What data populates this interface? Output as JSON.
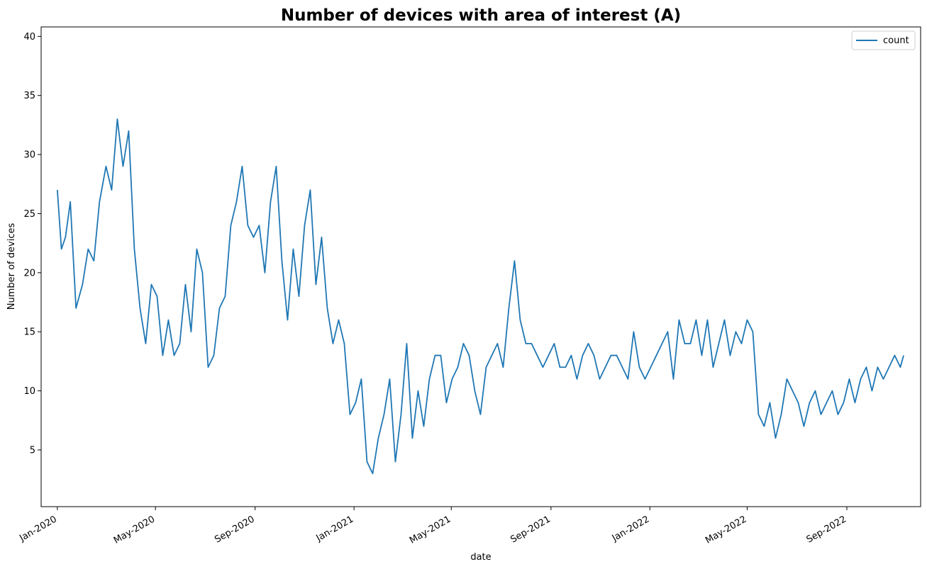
{
  "chart_data": {
    "type": "line",
    "title": "Number of devices with area of interest (A)",
    "xlabel": "date",
    "ylabel": "Number of devices",
    "x_start": "2020-01-01",
    "x_end": "2022-11-10",
    "xlim": [
      "2019-12-12",
      "2022-12-01"
    ],
    "ylim": [
      0.2,
      40.8
    ],
    "x_ticks": [
      {
        "date": "2020-01-01",
        "label": "Jan-2020"
      },
      {
        "date": "2020-05-01",
        "label": "May-2020"
      },
      {
        "date": "2020-09-01",
        "label": "Sep-2020"
      },
      {
        "date": "2021-01-01",
        "label": "Jan-2021"
      },
      {
        "date": "2021-05-01",
        "label": "May-2021"
      },
      {
        "date": "2021-09-01",
        "label": "Sep-2021"
      },
      {
        "date": "2022-01-01",
        "label": "Jan-2022"
      },
      {
        "date": "2022-05-01",
        "label": "May-2022"
      },
      {
        "date": "2022-09-01",
        "label": "Sep-2022"
      }
    ],
    "y_ticks": [
      5,
      10,
      15,
      20,
      25,
      30,
      35,
      40
    ],
    "grid": false,
    "legend_position": "top-right",
    "series": [
      {
        "name": "count",
        "color": "#1f77b4",
        "x": [
          "2020-01-01",
          "2020-01-06",
          "2020-01-11",
          "2020-01-17",
          "2020-01-24",
          "2020-02-01",
          "2020-02-08",
          "2020-02-15",
          "2020-02-22",
          "2020-03-01",
          "2020-03-08",
          "2020-03-15",
          "2020-03-22",
          "2020-03-29",
          "2020-04-05",
          "2020-04-12",
          "2020-04-19",
          "2020-04-26",
          "2020-05-03",
          "2020-05-10",
          "2020-05-17",
          "2020-05-24",
          "2020-05-31",
          "2020-06-07",
          "2020-06-14",
          "2020-06-21",
          "2020-06-28",
          "2020-07-05",
          "2020-07-12",
          "2020-07-19",
          "2020-07-26",
          "2020-08-02",
          "2020-08-09",
          "2020-08-16",
          "2020-08-23",
          "2020-08-30",
          "2020-09-06",
          "2020-09-13",
          "2020-09-20",
          "2020-09-27",
          "2020-10-04",
          "2020-10-11",
          "2020-10-18",
          "2020-10-25",
          "2020-11-01",
          "2020-11-08",
          "2020-11-15",
          "2020-11-22",
          "2020-11-29",
          "2020-12-06",
          "2020-12-13",
          "2020-12-20",
          "2020-12-27",
          "2021-01-03",
          "2021-01-10",
          "2021-01-17",
          "2021-01-24",
          "2021-01-31",
          "2021-02-07",
          "2021-02-14",
          "2021-02-21",
          "2021-02-28",
          "2021-03-07",
          "2021-03-14",
          "2021-03-21",
          "2021-03-28",
          "2021-04-04",
          "2021-04-11",
          "2021-04-18",
          "2021-04-25",
          "2021-05-02",
          "2021-05-09",
          "2021-05-16",
          "2021-05-23",
          "2021-05-30",
          "2021-06-06",
          "2021-06-13",
          "2021-06-20",
          "2021-06-27",
          "2021-07-04",
          "2021-07-11",
          "2021-07-18",
          "2021-07-25",
          "2021-08-01",
          "2021-08-08",
          "2021-08-15",
          "2021-08-22",
          "2021-08-29",
          "2021-09-05",
          "2021-09-12",
          "2021-09-19",
          "2021-09-26",
          "2021-10-03",
          "2021-10-10",
          "2021-10-17",
          "2021-10-24",
          "2021-10-31",
          "2021-11-07",
          "2021-11-14",
          "2021-11-21",
          "2021-11-28",
          "2021-12-05",
          "2021-12-12",
          "2021-12-19",
          "2021-12-26",
          "2022-01-02",
          "2022-01-09",
          "2022-01-16",
          "2022-01-23",
          "2022-01-30",
          "2022-02-06",
          "2022-02-13",
          "2022-02-20",
          "2022-02-27",
          "2022-03-06",
          "2022-03-13",
          "2022-03-20",
          "2022-03-27",
          "2022-04-03",
          "2022-04-10",
          "2022-04-17",
          "2022-04-24",
          "2022-05-01",
          "2022-05-08",
          "2022-05-15",
          "2022-05-22",
          "2022-05-29",
          "2022-06-05",
          "2022-06-12",
          "2022-06-19",
          "2022-06-26",
          "2022-07-03",
          "2022-07-10",
          "2022-07-17",
          "2022-07-24",
          "2022-07-31",
          "2022-08-07",
          "2022-08-14",
          "2022-08-21",
          "2022-08-28",
          "2022-09-04",
          "2022-09-11",
          "2022-09-18",
          "2022-09-25",
          "2022-10-02",
          "2022-10-09",
          "2022-10-16",
          "2022-10-23",
          "2022-10-30",
          "2022-11-06",
          "2022-11-10"
        ],
        "values": [
          27,
          22,
          23,
          26,
          17,
          19,
          22,
          21,
          26,
          29,
          27,
          33,
          29,
          32,
          22,
          17,
          14,
          19,
          18,
          13,
          16,
          13,
          14,
          19,
          15,
          22,
          20,
          12,
          13,
          17,
          18,
          24,
          26,
          29,
          24,
          23,
          24,
          20,
          26,
          29,
          21,
          16,
          22,
          18,
          24,
          27,
          19,
          23,
          17,
          14,
          16,
          14,
          8,
          9,
          11,
          4,
          3,
          6,
          8,
          11,
          4,
          8,
          14,
          6,
          10,
          7,
          11,
          13,
          13,
          9,
          11,
          12,
          14,
          13,
          10,
          8,
          12,
          13,
          14,
          12,
          17,
          21,
          16,
          14,
          14,
          13,
          12,
          13,
          14,
          12,
          12,
          13,
          11,
          13,
          14,
          13,
          11,
          12,
          13,
          13,
          12,
          11,
          15,
          12,
          11,
          12,
          13,
          14,
          15,
          11,
          16,
          14,
          14,
          16,
          13,
          16,
          12,
          14,
          16,
          13,
          15,
          14,
          16,
          15,
          8,
          7,
          9,
          6,
          8,
          11,
          10,
          9,
          7,
          9,
          10,
          8,
          9,
          10,
          8,
          9,
          11,
          9,
          11,
          12,
          10,
          12,
          11,
          12,
          13,
          12,
          13
        ]
      }
    ]
  }
}
